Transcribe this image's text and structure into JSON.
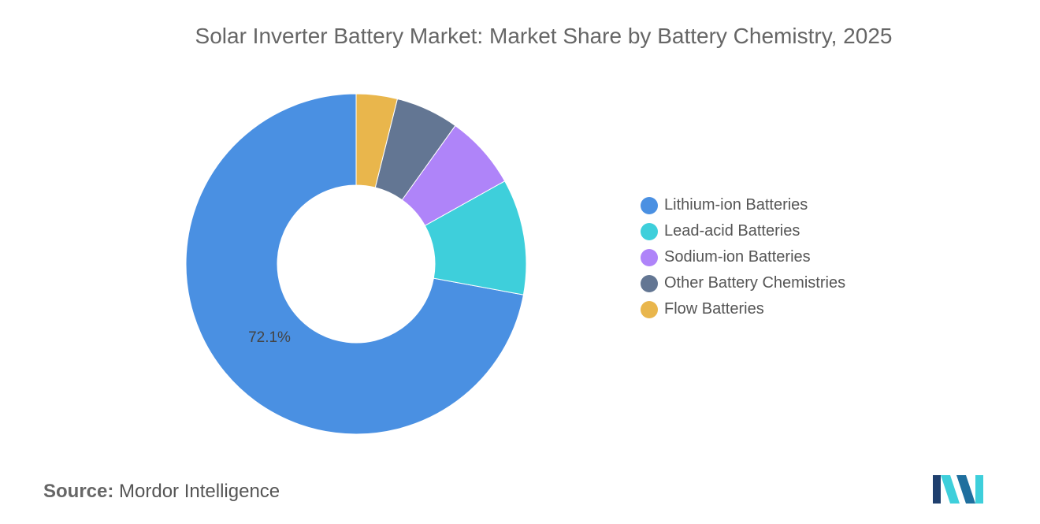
{
  "title": "Solar Inverter Battery Market: Market Share by Battery Chemistry, 2025",
  "source": {
    "label": "Source:",
    "value": "Mordor Intelligence"
  },
  "logo_icon": "mordor-intelligence-logo",
  "chart_data": {
    "type": "pie",
    "variant": "donut",
    "title": "Solar Inverter Battery Market: Market Share by Battery Chemistry, 2025",
    "unit": "%",
    "legend_position": "right",
    "series": [
      {
        "name": "Lithium-ion Batteries",
        "value": 72.1,
        "color": "#4A90E2",
        "label": "72.1%"
      },
      {
        "name": "Lead-acid Batteries",
        "value": 11.0,
        "color": "#3ECFDB",
        "label": ""
      },
      {
        "name": "Sodium-ion Batteries",
        "value": 7.0,
        "color": "#AF84F9",
        "label": ""
      },
      {
        "name": "Other Battery Chemistries",
        "value": 6.0,
        "color": "#637693",
        "label": ""
      },
      {
        "name": "Flow Batteries",
        "value": 3.9,
        "color": "#E9B64C",
        "label": ""
      }
    ]
  }
}
